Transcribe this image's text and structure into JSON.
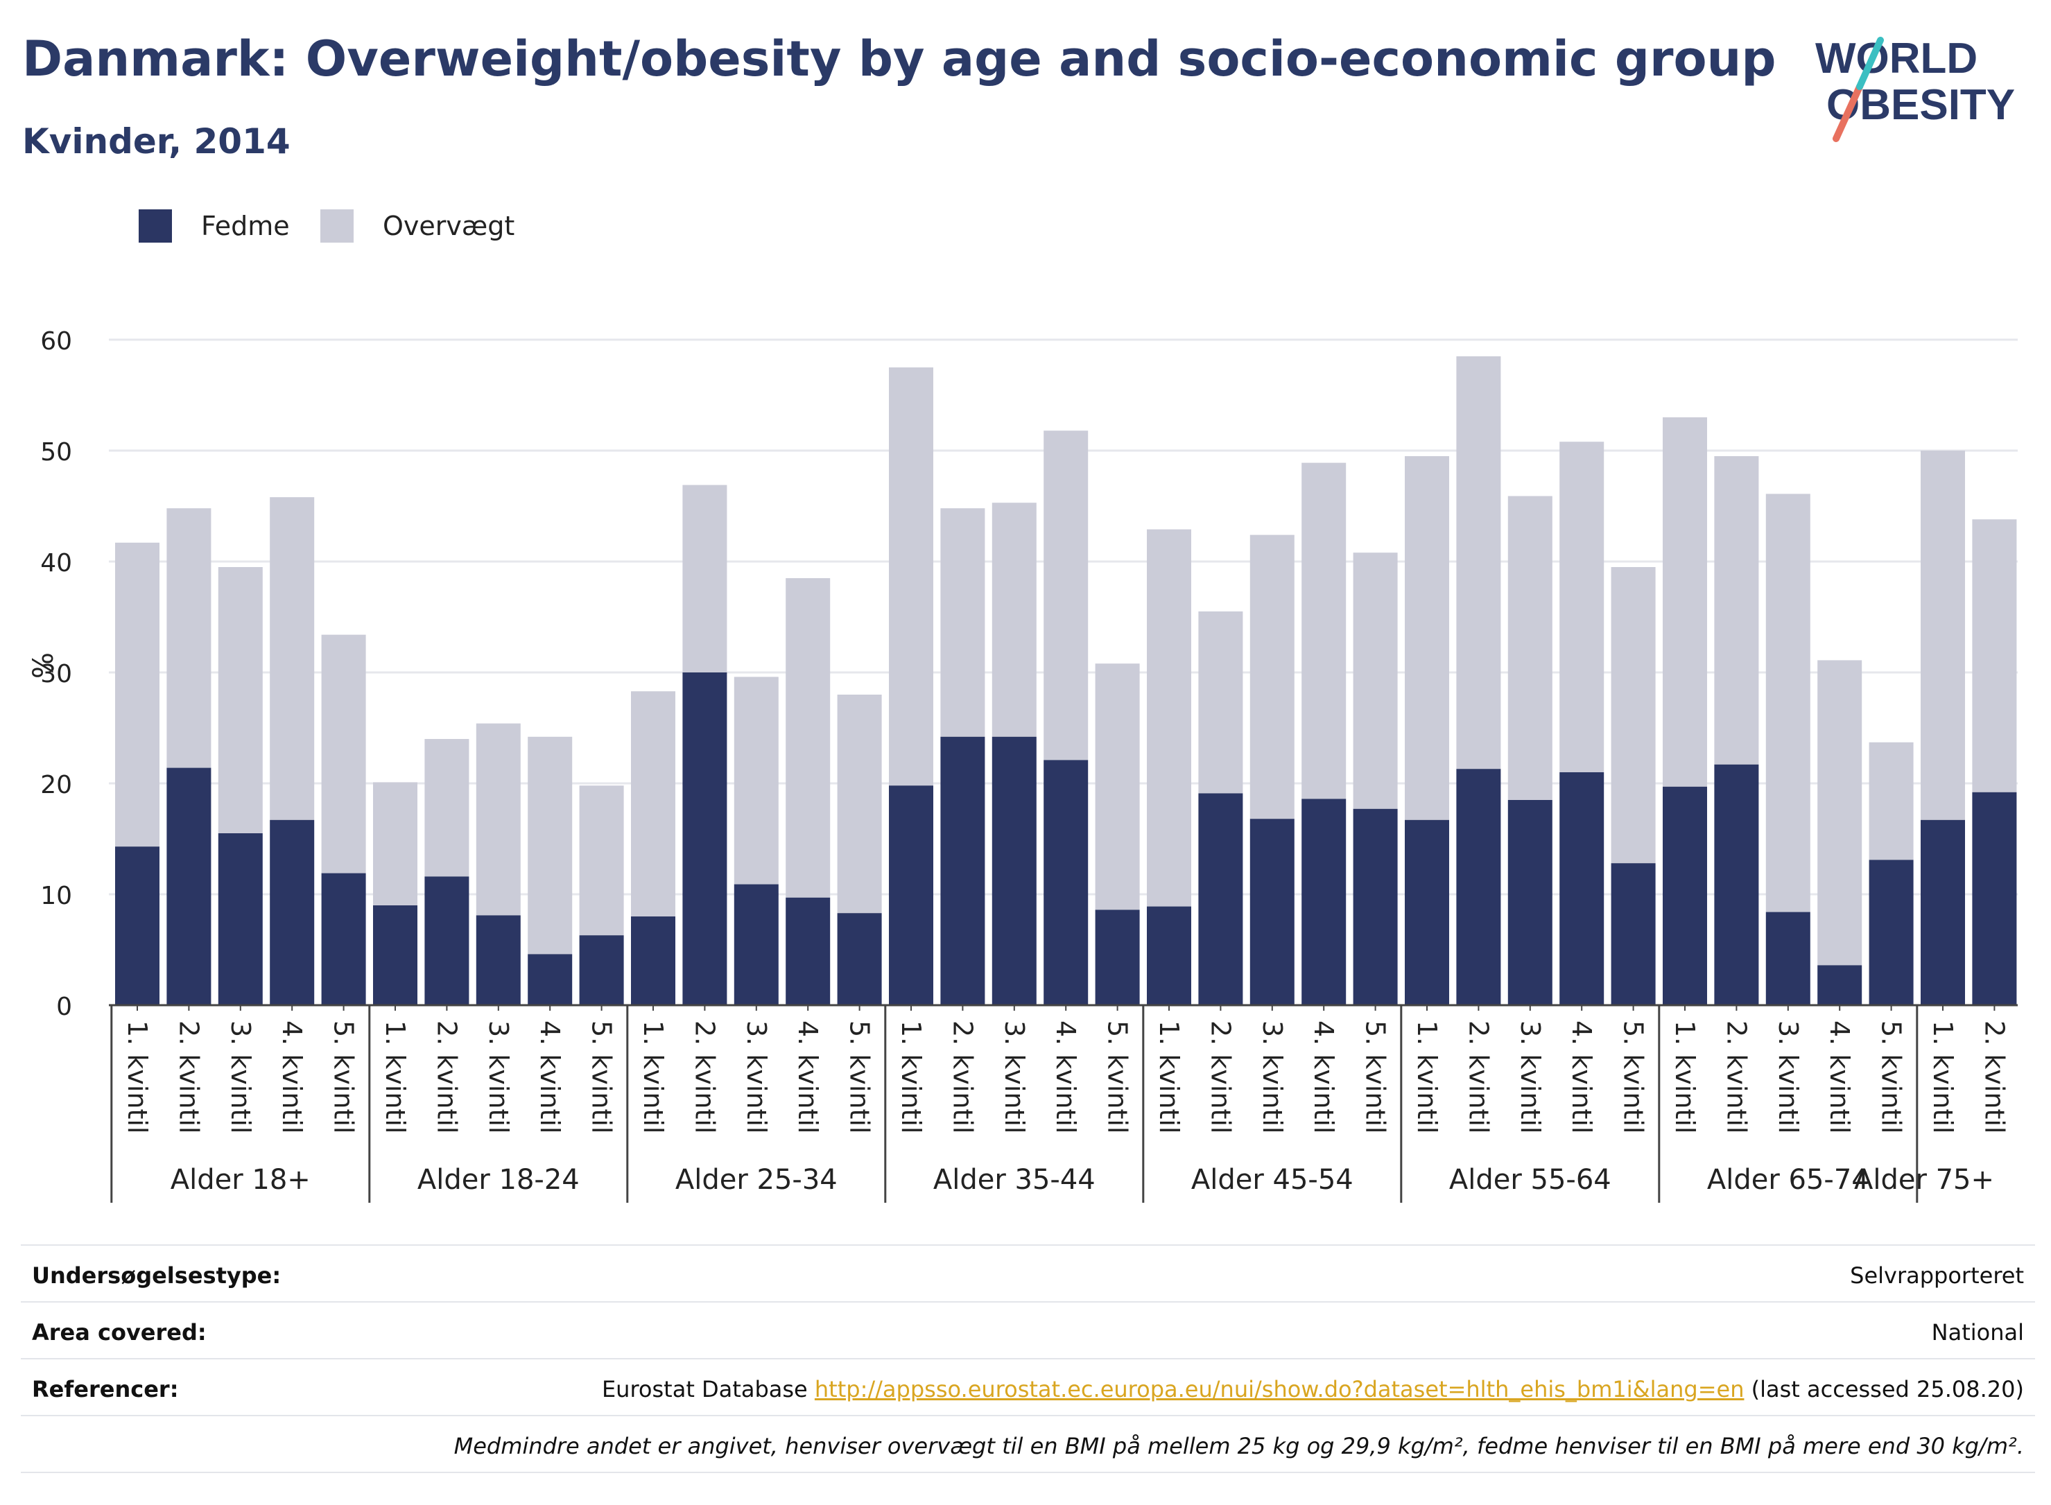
{
  "title": "Danmark: Overweight/obesity by age and socio-economic group",
  "subtitle": "Kvinder, 2014",
  "logo": {
    "line1": "WORLD",
    "line2": "OBESITY",
    "accent_teal": "#3bbfc2",
    "accent_coral": "#e8715f"
  },
  "colors": {
    "fedme": "#2b3663",
    "overvaegt": "#cbccd8",
    "axis": "#444444",
    "grid": "#e6e7ec"
  },
  "chart_data": {
    "type": "bar",
    "stacked": true,
    "title": "",
    "xlabel": "",
    "ylabel": "%",
    "ylim": [
      0,
      60
    ],
    "yticks": [
      0,
      10,
      20,
      30,
      40,
      50,
      60
    ],
    "legend": {
      "placement": "top-left",
      "entries": [
        "Fedme",
        "Overvægt"
      ]
    },
    "groups": [
      {
        "label": "Alder 18+",
        "categories": [
          "1. kvintil",
          "2. kvintil",
          "3. kvintil",
          "4. kvintil",
          "5. kvintil"
        ]
      },
      {
        "label": "Alder 18-24",
        "categories": [
          "1. kvintil",
          "2. kvintil",
          "3. kvintil",
          "4. kvintil",
          "5. kvintil"
        ]
      },
      {
        "label": "Alder 25-34",
        "categories": [
          "1. kvintil",
          "2. kvintil",
          "3. kvintil",
          "4. kvintil",
          "5. kvintil"
        ]
      },
      {
        "label": "Alder 35-44",
        "categories": [
          "1. kvintil",
          "2. kvintil",
          "3. kvintil",
          "4. kvintil",
          "5. kvintil"
        ]
      },
      {
        "label": "Alder 45-54",
        "categories": [
          "1. kvintil",
          "2. kvintil",
          "3. kvintil",
          "4. kvintil",
          "5. kvintil"
        ]
      },
      {
        "label": "Alder 55-64",
        "categories": [
          "1. kvintil",
          "2. kvintil",
          "3. kvintil",
          "4. kvintil",
          "5. kvintil"
        ]
      },
      {
        "label": "Alder 65-74",
        "categories": [
          "1. kvintil",
          "2. kvintil",
          "3. kvintil",
          "4. kvintil",
          "5. kvintil"
        ]
      },
      {
        "label": "Alder 75+",
        "categories": [
          "1. kvintil",
          "2. kvintil"
        ]
      }
    ],
    "series": [
      {
        "name": "Fedme",
        "values": [
          14.3,
          21.4,
          15.5,
          16.7,
          11.9,
          9.0,
          11.6,
          8.1,
          4.6,
          6.3,
          8.0,
          30.0,
          10.9,
          9.7,
          8.3,
          19.8,
          24.2,
          24.2,
          22.1,
          8.6,
          8.9,
          19.1,
          16.8,
          18.6,
          17.7,
          16.7,
          21.3,
          18.5,
          21.0,
          12.8,
          19.7,
          21.7,
          8.4,
          3.6,
          13.1,
          16.7,
          19.2
        ]
      },
      {
        "name": "Overvægt",
        "values": [
          27.4,
          23.4,
          24.0,
          29.1,
          21.5,
          11.1,
          12.4,
          17.3,
          19.6,
          13.5,
          20.3,
          16.9,
          18.7,
          28.8,
          19.7,
          37.7,
          20.6,
          21.1,
          29.7,
          22.2,
          34.0,
          16.4,
          25.6,
          30.3,
          23.1,
          32.8,
          37.2,
          27.4,
          29.8,
          26.7,
          33.3,
          27.8,
          37.7,
          27.5,
          10.6,
          33.3,
          24.6
        ]
      }
    ]
  },
  "info": {
    "rows": [
      {
        "key": "Undersøgelsestype:",
        "value": "Selvrapporteret"
      },
      {
        "key": "Area covered:",
        "value": "National"
      },
      {
        "key": "Referencer:",
        "value_prefix": "Eurostat Database",
        "link": "http://appsso.eurostat.ec.europa.eu/nui/show.do?dataset=hlth_ehis_bm1i&lang=en",
        "value_suffix": "(last accessed 25.08.20)"
      }
    ],
    "note": "Medmindre andet er angivet, henviser overvægt til en BMI på mellem 25 kg og 29,9 kg/m², fedme henviser til en BMI på mere end 30 kg/m²."
  }
}
